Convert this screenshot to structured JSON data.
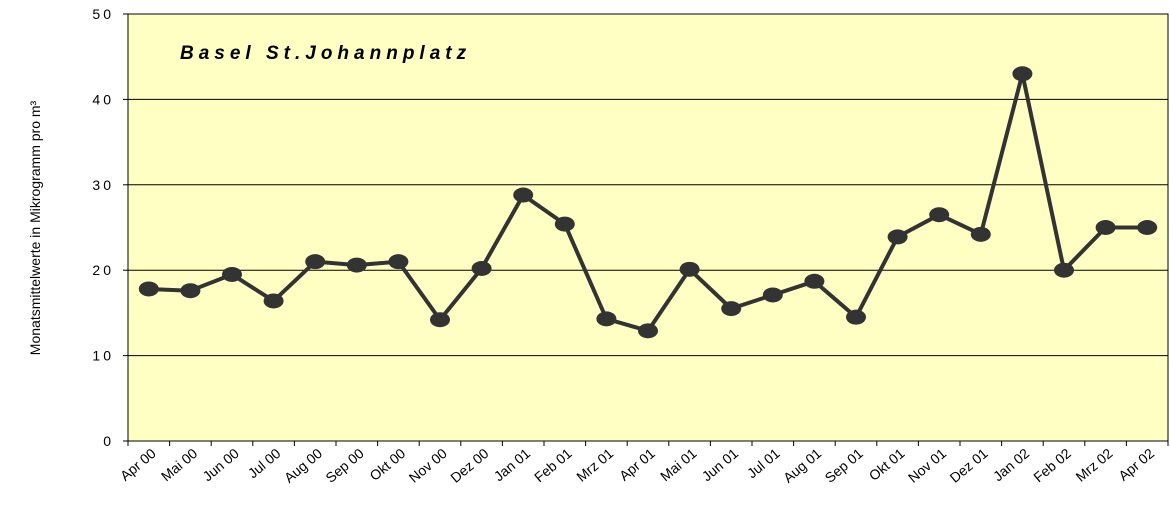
{
  "chart_data": {
    "type": "line",
    "title": "Basel St.Johannplatz",
    "y_label": "Monatsmittelwerte in Mikrogramm pro m³",
    "categories": [
      "Apr 00",
      "Mai 00",
      "Jun 00",
      "Jul 00",
      "Aug 00",
      "Sep 00",
      "Okt 00",
      "Nov 00",
      "Dez 00",
      "Jan 01",
      "Feb 01",
      "Mrz 01",
      "Apr 01",
      "Mai 01",
      "Jun 01",
      "Jul 01",
      "Aug 01",
      "Sep 01",
      "Okt 01",
      "Nov 01",
      "Dez 01",
      "Jan 02",
      "Feb 02",
      "Mrz 02",
      "Apr 02"
    ],
    "series": [
      {
        "color": "#333333",
        "values": [
          17.8,
          17.6,
          19.5,
          16.4,
          21.0,
          20.6,
          21.0,
          14.2,
          20.2,
          28.8,
          25.4,
          14.3,
          12.9,
          20.1,
          15.5,
          17.1,
          18.7,
          14.5,
          23.9,
          26.5,
          24.2,
          43.0,
          20.0,
          25.0,
          25.0
        ]
      }
    ],
    "ylim": [
      0,
      50
    ],
    "yticks": [
      0,
      10,
      20,
      30,
      40,
      50
    ],
    "grid": true,
    "background": "#ffffc4"
  }
}
